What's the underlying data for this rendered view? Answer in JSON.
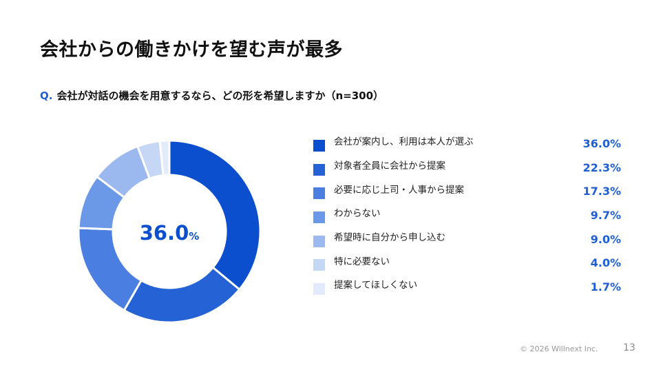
{
  "slide": {
    "title": "会社からの働きかけを望む声が最多",
    "question_prefix": "Q.",
    "question_text": "会社が対話の機会を用意するなら、どの形を希望しますか（n=300）",
    "footer_copyright": "© 2026 Willnext Inc.",
    "page_number": "13"
  },
  "chart_center": {
    "value": "36.0",
    "unit": "%"
  },
  "chart_data": {
    "type": "pie",
    "donut": true,
    "legend_position": "right",
    "categories": [
      "会社が案内し、利用は本人が選ぶ",
      "対象者全員に会社から提案",
      "必要に応じ上司・人事から提案",
      "わからない",
      "希望時に自分から申し込む",
      "特に必要ない",
      "提案してほしくない"
    ],
    "values": [
      36.0,
      22.3,
      17.3,
      9.7,
      9.0,
      4.0,
      1.7
    ],
    "value_labels": [
      "36.0%",
      "22.3%",
      "17.3%",
      "9.7%",
      "9.0%",
      "4.0%",
      "1.7%"
    ],
    "colors": [
      "#0b4fcf",
      "#2462d6",
      "#4a7fe1",
      "#6c98e8",
      "#9bb8ef",
      "#c6d6f5",
      "#e3eafb"
    ]
  }
}
